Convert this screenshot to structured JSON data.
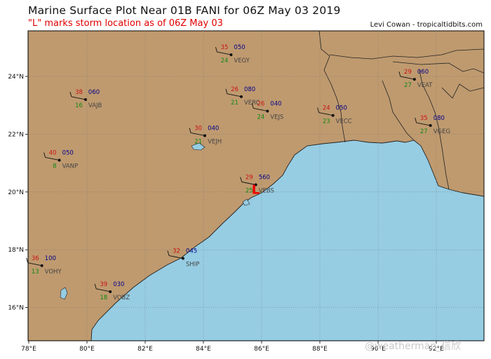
{
  "header": {
    "title": "Marine Surface Plot Near 01B FANI for 06Z May 03 2019",
    "subtitle": "\"L\" marks storm location as of 06Z May 03",
    "credit": "Levi Cowan - tropicaltidbits.com"
  },
  "axes": {
    "lon_ticks": [
      "78°E",
      "80°E",
      "82°E",
      "84°E",
      "86°E",
      "88°E",
      "90°E",
      "92°E"
    ],
    "lat_ticks": [
      "24°N",
      "22°N",
      "20°N",
      "18°N",
      "16°N"
    ]
  },
  "storm": {
    "marker": "L",
    "name": "FANI",
    "id": "01B",
    "lon": 85.8,
    "lat": 20.1
  },
  "colors": {
    "land": "#bf9a6f",
    "sea": "#96cde3",
    "temp": "#cc1111",
    "dewpoint": "#118811",
    "pressure": "#000088",
    "station_id": "#444444",
    "storm_marker": "#ee0000"
  },
  "stations": [
    {
      "id": "VEGY",
      "temp": "35",
      "dew": "24",
      "pres": "050",
      "lon": 84.95,
      "lat": 24.75
    },
    {
      "id": "VERC",
      "temp": "26",
      "dew": "21",
      "pres": "080",
      "lon": 85.3,
      "lat": 23.3
    },
    {
      "id": "VEJS",
      "temp": "26",
      "dew": "24",
      "pres": "040",
      "lon": 86.2,
      "lat": 22.8
    },
    {
      "id": "VEJH",
      "temp": "30",
      "dew": "21",
      "pres": "040",
      "lon": 84.05,
      "lat": 21.95
    },
    {
      "id": "VECC",
      "temp": "24",
      "dew": "23",
      "pres": "050",
      "lon": 88.45,
      "lat": 22.65
    },
    {
      "id": "VEAT",
      "temp": "29",
      "dew": "27",
      "pres": "060",
      "lon": 91.25,
      "lat": 23.9
    },
    {
      "id": "VGEG",
      "temp": "35",
      "dew": "27",
      "pres": "080",
      "lon": 91.8,
      "lat": 22.3
    },
    {
      "id": "VAJB",
      "temp": "38",
      "dew": "16",
      "pres": "060",
      "lon": 79.95,
      "lat": 23.2
    },
    {
      "id": "VANP",
      "temp": "40",
      "dew": "8",
      "pres": "050",
      "lon": 79.05,
      "lat": 21.1
    },
    {
      "id": "VEBS",
      "temp": "29",
      "dew": "25",
      "pres": "560",
      "lon": 85.8,
      "lat": 20.25
    },
    {
      "id": "SHIP",
      "temp": "32",
      "dew": "",
      "pres": "045",
      "lon": 83.3,
      "lat": 17.7
    },
    {
      "id": "VOHY",
      "temp": "36",
      "dew": "13",
      "pres": "100",
      "lon": 78.45,
      "lat": 17.45
    },
    {
      "id": "VOBZ",
      "temp": "39",
      "dew": "18",
      "pres": "030",
      "lon": 80.8,
      "lat": 16.55
    }
  ],
  "watermark": "@weatherman_信欣"
}
